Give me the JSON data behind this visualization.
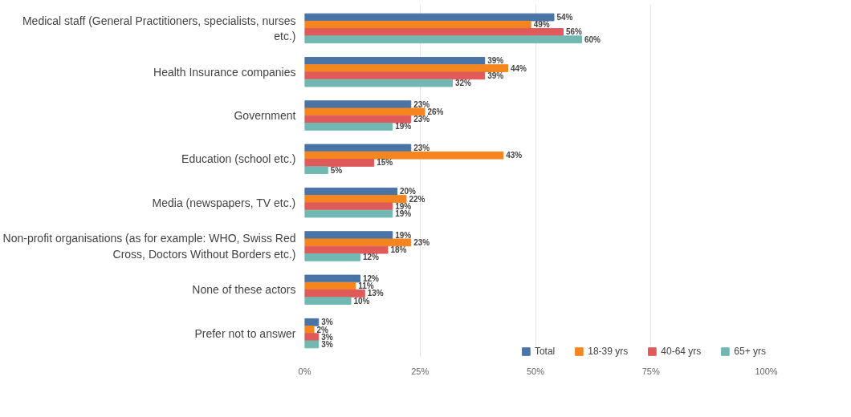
{
  "chart_data": {
    "type": "bar",
    "orientation": "horizontal",
    "categories": [
      "Medical staff (General Practitioners, specialists, nurses etc.)",
      "Health Insurance companies",
      "Government",
      "Education (school etc.)",
      "Media (newspapers, TV etc.)",
      "Non-profit organisations (as for example: WHO, Swiss Red Cross, Doctors Without Borders etc.)",
      "None of these actors",
      "Prefer not to answer"
    ],
    "series": [
      {
        "name": "Total",
        "color": "#4a74a6",
        "values": [
          54,
          39,
          23,
          23,
          20,
          19,
          12,
          3
        ],
        "value_labels": [
          "54%",
          "39%",
          "23%",
          "23%",
          "20%",
          "19%",
          "12%",
          "3%"
        ]
      },
      {
        "name": "18-39 yrs",
        "color": "#f5861f",
        "values": [
          49,
          44,
          26,
          43,
          22,
          23,
          11,
          2
        ],
        "value_labels": [
          "49%",
          "44%",
          "26%",
          "43%",
          "22%",
          "23%",
          "11%",
          "2%"
        ]
      },
      {
        "name": "40-64 yrs",
        "color": "#e05a5a",
        "values": [
          56,
          39,
          23,
          15,
          19,
          18,
          13,
          3
        ],
        "value_labels": [
          "56%",
          "39%",
          "23%",
          "15%",
          "19%",
          "18%",
          "13%",
          "3%"
        ]
      },
      {
        "name": "65+ yrs",
        "color": "#72b8b2",
        "values": [
          60,
          32,
          19,
          5,
          19,
          12,
          10,
          3
        ],
        "value_labels": [
          "60%",
          "32%",
          "19%",
          "5%",
          "19%",
          "12%",
          "10%",
          "3%"
        ]
      }
    ],
    "xlim": [
      0,
      100
    ],
    "xticks": [
      {
        "value": 0,
        "label": "0%"
      },
      {
        "value": 25,
        "label": "25%"
      },
      {
        "value": 50,
        "label": "50%"
      },
      {
        "value": 75,
        "label": "75%"
      },
      {
        "value": 100,
        "label": "100%"
      }
    ],
    "grid": "x",
    "legend": "bottom right"
  }
}
